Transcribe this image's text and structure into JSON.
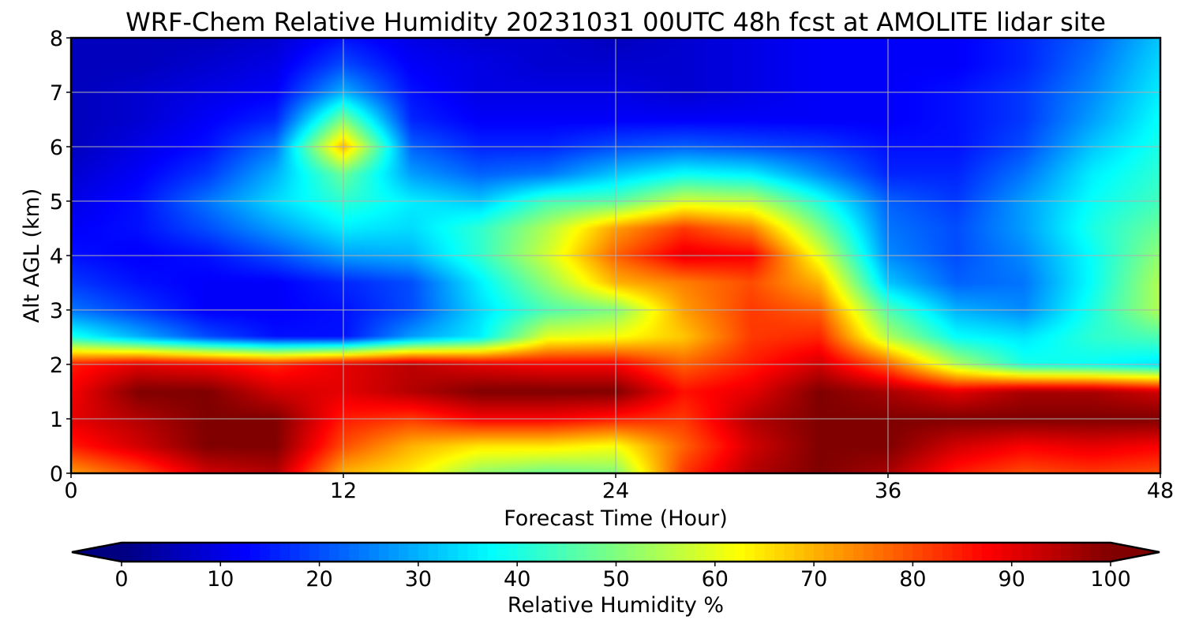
{
  "chart_data": {
    "type": "heatmap",
    "title": "WRF-Chem Relative Humidity 20231031 00UTC 48h fcst at AMOLITE lidar site",
    "xlabel": "Forecast Time (Hour)",
    "ylabel": "Alt AGL (km)",
    "xlim": [
      0,
      48
    ],
    "ylim": [
      0,
      8
    ],
    "xticks": [
      "0",
      "12",
      "24",
      "36",
      "48"
    ],
    "yticks": [
      "0",
      "1",
      "2",
      "3",
      "4",
      "5",
      "6",
      "7",
      "8"
    ],
    "grid": true,
    "colormap": "jet",
    "colorbar": {
      "label": "Relative Humidity %",
      "range": [
        0,
        100
      ],
      "ticks": [
        "0",
        "10",
        "20",
        "30",
        "40",
        "50",
        "60",
        "70",
        "80",
        "90",
        "100"
      ],
      "extend": "both",
      "position": "bottom"
    },
    "x": [
      0,
      3,
      6,
      9,
      12,
      15,
      18,
      21,
      24,
      27,
      30,
      33,
      36,
      39,
      42,
      45,
      48
    ],
    "y": [
      0,
      0.5,
      1,
      1.5,
      2,
      2.5,
      3,
      3.5,
      4,
      4.5,
      5,
      5.5,
      6,
      6.5,
      7,
      7.5,
      8
    ],
    "values": [
      [
        72,
        80,
        92,
        95,
        70,
        64,
        52,
        48,
        50,
        82,
        95,
        100,
        96,
        85,
        80,
        82,
        80
      ],
      [
        85,
        92,
        100,
        100,
        80,
        70,
        65,
        65,
        62,
        78,
        92,
        100,
        100,
        92,
        88,
        90,
        88
      ],
      [
        90,
        95,
        100,
        100,
        85,
        82,
        88,
        88,
        85,
        82,
        95,
        100,
        100,
        100,
        100,
        100,
        100
      ],
      [
        88,
        100,
        100,
        92,
        90,
        95,
        100,
        100,
        100,
        86,
        90,
        100,
        96,
        90,
        96,
        96,
        92
      ],
      [
        85,
        90,
        88,
        84,
        90,
        94,
        90,
        88,
        88,
        78,
        85,
        92,
        78,
        55,
        40,
        38,
        35
      ],
      [
        40,
        30,
        20,
        14,
        14,
        28,
        36,
        60,
        62,
        68,
        82,
        84,
        55,
        38,
        35,
        42,
        45
      ],
      [
        24,
        18,
        12,
        12,
        14,
        20,
        34,
        45,
        50,
        72,
        82,
        78,
        45,
        30,
        26,
        40,
        55
      ],
      [
        18,
        14,
        12,
        12,
        16,
        20,
        36,
        52,
        70,
        75,
        80,
        70,
        32,
        22,
        24,
        38,
        55
      ],
      [
        14,
        12,
        14,
        20,
        28,
        30,
        42,
        58,
        78,
        90,
        88,
        60,
        26,
        20,
        26,
        38,
        52
      ],
      [
        12,
        14,
        20,
        28,
        36,
        34,
        42,
        55,
        72,
        82,
        75,
        50,
        24,
        20,
        28,
        40,
        48
      ],
      [
        10,
        14,
        24,
        34,
        42,
        36,
        32,
        44,
        46,
        58,
        56,
        40,
        22,
        18,
        28,
        38,
        44
      ],
      [
        8,
        12,
        18,
        30,
        48,
        28,
        22,
        24,
        32,
        38,
        36,
        26,
        16,
        16,
        24,
        36,
        42
      ],
      [
        6,
        10,
        14,
        24,
        70,
        22,
        16,
        16,
        20,
        22,
        20,
        18,
        14,
        14,
        20,
        32,
        40
      ],
      [
        6,
        8,
        12,
        16,
        50,
        16,
        12,
        12,
        12,
        12,
        12,
        12,
        12,
        14,
        18,
        28,
        38
      ],
      [
        6,
        8,
        10,
        12,
        30,
        14,
        10,
        10,
        10,
        8,
        10,
        12,
        12,
        14,
        18,
        26,
        36
      ],
      [
        6,
        6,
        8,
        10,
        20,
        12,
        10,
        8,
        8,
        8,
        10,
        12,
        12,
        12,
        16,
        24,
        34
      ],
      [
        6,
        6,
        6,
        8,
        14,
        10,
        8,
        8,
        6,
        8,
        10,
        12,
        12,
        12,
        16,
        22,
        32
      ]
    ]
  }
}
